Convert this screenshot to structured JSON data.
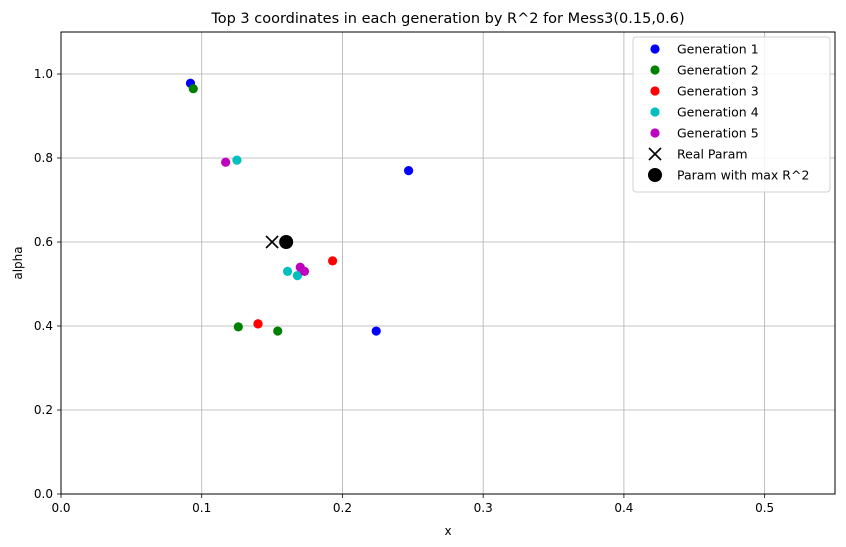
{
  "chart_data": {
    "type": "scatter",
    "title": "Top 3 coordinates in each generation by R^2 for Mess3(0.15,0.6)",
    "xlabel": "x",
    "ylabel": "alpha",
    "xlim": [
      0.0,
      0.55
    ],
    "ylim": [
      0.0,
      1.1
    ],
    "xticks": [
      "0.0",
      "0.1",
      "0.2",
      "0.3",
      "0.4",
      "0.5"
    ],
    "xtick_values": [
      0.0,
      0.1,
      0.2,
      0.3,
      0.4,
      0.5
    ],
    "yticks": [
      "0.0",
      "0.2",
      "0.4",
      "0.6",
      "0.8",
      "1.0"
    ],
    "ytick_values": [
      0.0,
      0.2,
      0.4,
      0.6,
      0.8,
      1.0
    ],
    "grid": true,
    "legend_position": "top-right",
    "series": [
      {
        "name": "Generation 1",
        "color": "#0000ff",
        "marker": "circle",
        "points": [
          [
            0.092,
            0.978
          ],
          [
            0.247,
            0.77
          ],
          [
            0.224,
            0.388
          ]
        ]
      },
      {
        "name": "Generation 2",
        "color": "#008000",
        "marker": "circle",
        "points": [
          [
            0.094,
            0.965
          ],
          [
            0.126,
            0.398
          ],
          [
            0.154,
            0.388
          ]
        ]
      },
      {
        "name": "Generation 3",
        "color": "#ff0000",
        "marker": "circle",
        "points": [
          [
            0.193,
            0.555
          ],
          [
            0.14,
            0.405
          ],
          [
            0.14,
            0.405
          ]
        ]
      },
      {
        "name": "Generation 4",
        "color": "#00bfbf",
        "marker": "circle",
        "points": [
          [
            0.125,
            0.795
          ],
          [
            0.161,
            0.53
          ],
          [
            0.168,
            0.52
          ]
        ]
      },
      {
        "name": "Generation 5",
        "color": "#bf00bf",
        "marker": "circle",
        "points": [
          [
            0.117,
            0.79
          ],
          [
            0.17,
            0.54
          ],
          [
            0.173,
            0.53
          ]
        ]
      },
      {
        "name": "Real Param",
        "color": "#000000",
        "marker": "x",
        "points": [
          [
            0.15,
            0.6
          ]
        ]
      },
      {
        "name": "Param with max R^2",
        "color": "#000000",
        "marker": "big-circle",
        "points": [
          [
            0.16,
            0.6
          ]
        ]
      }
    ]
  }
}
